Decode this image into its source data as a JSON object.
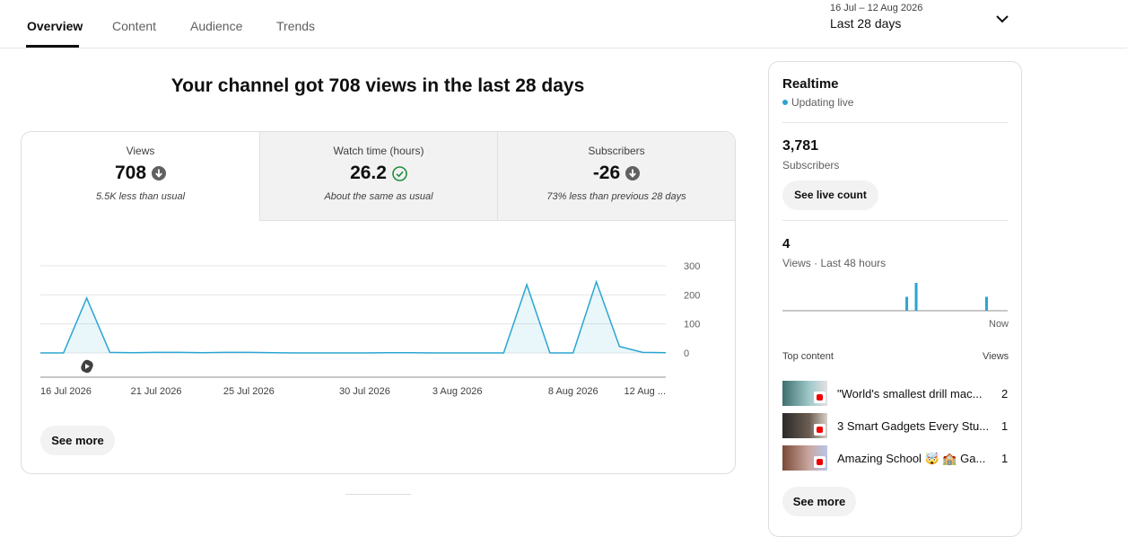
{
  "tabs": [
    "Overview",
    "Content",
    "Audience",
    "Trends"
  ],
  "date_range": {
    "dates": "16 Jul – 12 Aug 2026",
    "label": "Last 28 days"
  },
  "headline": "Your channel got 708 views in the last 28 days",
  "metrics": [
    {
      "label": "Views",
      "value": "708",
      "note": "5.5K less than usual"
    },
    {
      "label": "Watch time (hours)",
      "value": "26.2",
      "note": "About the same as usual"
    },
    {
      "label": "Subscribers",
      "value": "-26",
      "note": "73% less than previous 28 days"
    }
  ],
  "main_chart": {
    "type": "line",
    "color": "#2ba5d2",
    "categories": [
      "16 Jul 2026",
      null,
      null,
      null,
      null,
      "21 Jul 2026",
      null,
      null,
      null,
      "25 Jul 2026",
      null,
      null,
      null,
      null,
      "30 Jul 2026",
      null,
      null,
      null,
      "3 Aug 2026",
      null,
      null,
      null,
      null,
      "8 Aug 2026",
      null,
      null,
      null,
      "12 Aug ..."
    ],
    "values": [
      0,
      0,
      189,
      2,
      1,
      2,
      2,
      1,
      2,
      2,
      1,
      0,
      0,
      0,
      0,
      1,
      1,
      0,
      0,
      0,
      0,
      235,
      0,
      0,
      245,
      22,
      2,
      1
    ],
    "ylim": [
      0,
      300
    ],
    "yticks": [
      0,
      100,
      200,
      300
    ],
    "grid": true
  },
  "see_more": "See more",
  "realtime": {
    "title": "Realtime",
    "status": "Updating live",
    "subscribers": {
      "value": "3,781",
      "label": "Subscribers",
      "button": "See live count"
    },
    "views": {
      "value": "4",
      "label": "Views · Last 48 hours"
    },
    "chart": {
      "type": "bar",
      "color": "#2ba5d2",
      "values": [
        0,
        0,
        0,
        0,
        0,
        0,
        0,
        0,
        0,
        0,
        0,
        0,
        0,
        0,
        0,
        0,
        0,
        0,
        0,
        0,
        0,
        0,
        0,
        0,
        0,
        0,
        1,
        0,
        2,
        0,
        0,
        0,
        0,
        0,
        0,
        0,
        0,
        0,
        0,
        0,
        0,
        0,
        0,
        1,
        0,
        0,
        0,
        0
      ],
      "end_label": "Now"
    },
    "top_content": {
      "header": "Top content",
      "views_header": "Views",
      "items": [
        {
          "title": "\"World's smallest drill mac...",
          "views": 2
        },
        {
          "title": "3 Smart Gadgets Every Stu...",
          "views": 1
        },
        {
          "title": "Amazing School 🤯 🏫 Ga...",
          "views": 1
        }
      ]
    },
    "see_more": "See more"
  }
}
